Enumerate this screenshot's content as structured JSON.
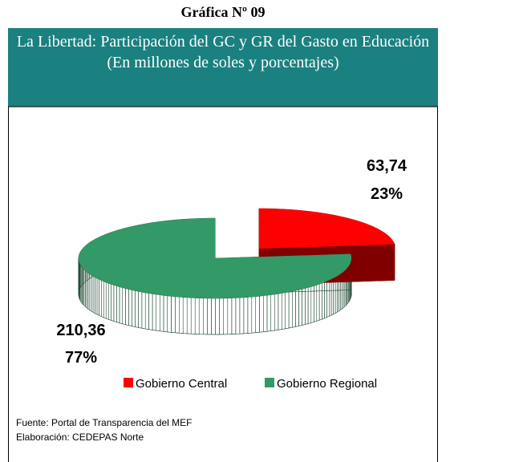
{
  "heading": "Gráfica Nº 09",
  "chart_data": {
    "type": "pie",
    "title": "La Libertad: Participación del GC y GR del Gasto en Educación",
    "subtitle": "(En millones de soles y porcentajes)",
    "categories": [
      "Gobierno Central",
      "Gobierno Regional"
    ],
    "values": [
      63.74,
      210.36
    ],
    "value_labels": [
      "63,74",
      "210,36"
    ],
    "percentages": [
      23,
      77
    ],
    "percentage_labels": [
      "23%",
      "77%"
    ],
    "colors": [
      "#ff0000",
      "#339966"
    ],
    "side_colors": [
      "#800000",
      "#1f4a33"
    ],
    "legend": "bottom"
  },
  "source": [
    "Fuente: Portal de Transparencia del MEF",
    "Elaboración: CEDEPAS Norte"
  ]
}
